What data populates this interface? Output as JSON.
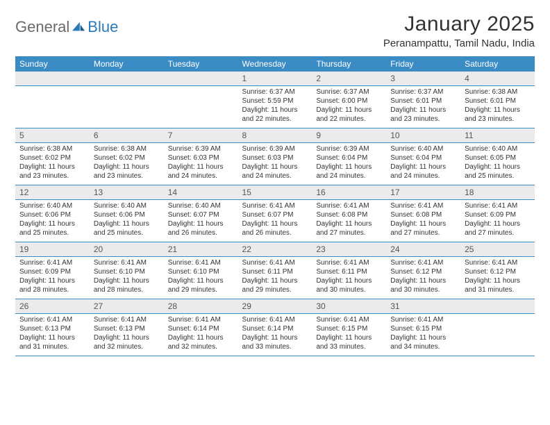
{
  "logo": {
    "text_gen": "General",
    "text_blue": "Blue"
  },
  "header": {
    "month_title": "January 2025",
    "location": "Peranampattu, Tamil Nadu, India"
  },
  "colors": {
    "header_bg": "#3b8bc4",
    "daynum_bg": "#ebebeb",
    "rule": "#3b8bc4",
    "text": "#333333"
  },
  "daynames": [
    "Sunday",
    "Monday",
    "Tuesday",
    "Wednesday",
    "Thursday",
    "Friday",
    "Saturday"
  ],
  "weeks": [
    [
      null,
      null,
      null,
      {
        "n": "1",
        "sunrise": "6:37 AM",
        "sunset": "5:59 PM",
        "daylight": "11 hours and 22 minutes."
      },
      {
        "n": "2",
        "sunrise": "6:37 AM",
        "sunset": "6:00 PM",
        "daylight": "11 hours and 22 minutes."
      },
      {
        "n": "3",
        "sunrise": "6:37 AM",
        "sunset": "6:01 PM",
        "daylight": "11 hours and 23 minutes."
      },
      {
        "n": "4",
        "sunrise": "6:38 AM",
        "sunset": "6:01 PM",
        "daylight": "11 hours and 23 minutes."
      }
    ],
    [
      {
        "n": "5",
        "sunrise": "6:38 AM",
        "sunset": "6:02 PM",
        "daylight": "11 hours and 23 minutes."
      },
      {
        "n": "6",
        "sunrise": "6:38 AM",
        "sunset": "6:02 PM",
        "daylight": "11 hours and 23 minutes."
      },
      {
        "n": "7",
        "sunrise": "6:39 AM",
        "sunset": "6:03 PM",
        "daylight": "11 hours and 24 minutes."
      },
      {
        "n": "8",
        "sunrise": "6:39 AM",
        "sunset": "6:03 PM",
        "daylight": "11 hours and 24 minutes."
      },
      {
        "n": "9",
        "sunrise": "6:39 AM",
        "sunset": "6:04 PM",
        "daylight": "11 hours and 24 minutes."
      },
      {
        "n": "10",
        "sunrise": "6:40 AM",
        "sunset": "6:04 PM",
        "daylight": "11 hours and 24 minutes."
      },
      {
        "n": "11",
        "sunrise": "6:40 AM",
        "sunset": "6:05 PM",
        "daylight": "11 hours and 25 minutes."
      }
    ],
    [
      {
        "n": "12",
        "sunrise": "6:40 AM",
        "sunset": "6:06 PM",
        "daylight": "11 hours and 25 minutes."
      },
      {
        "n": "13",
        "sunrise": "6:40 AM",
        "sunset": "6:06 PM",
        "daylight": "11 hours and 25 minutes."
      },
      {
        "n": "14",
        "sunrise": "6:40 AM",
        "sunset": "6:07 PM",
        "daylight": "11 hours and 26 minutes."
      },
      {
        "n": "15",
        "sunrise": "6:41 AM",
        "sunset": "6:07 PM",
        "daylight": "11 hours and 26 minutes."
      },
      {
        "n": "16",
        "sunrise": "6:41 AM",
        "sunset": "6:08 PM",
        "daylight": "11 hours and 27 minutes."
      },
      {
        "n": "17",
        "sunrise": "6:41 AM",
        "sunset": "6:08 PM",
        "daylight": "11 hours and 27 minutes."
      },
      {
        "n": "18",
        "sunrise": "6:41 AM",
        "sunset": "6:09 PM",
        "daylight": "11 hours and 27 minutes."
      }
    ],
    [
      {
        "n": "19",
        "sunrise": "6:41 AM",
        "sunset": "6:09 PM",
        "daylight": "11 hours and 28 minutes."
      },
      {
        "n": "20",
        "sunrise": "6:41 AM",
        "sunset": "6:10 PM",
        "daylight": "11 hours and 28 minutes."
      },
      {
        "n": "21",
        "sunrise": "6:41 AM",
        "sunset": "6:10 PM",
        "daylight": "11 hours and 29 minutes."
      },
      {
        "n": "22",
        "sunrise": "6:41 AM",
        "sunset": "6:11 PM",
        "daylight": "11 hours and 29 minutes."
      },
      {
        "n": "23",
        "sunrise": "6:41 AM",
        "sunset": "6:11 PM",
        "daylight": "11 hours and 30 minutes."
      },
      {
        "n": "24",
        "sunrise": "6:41 AM",
        "sunset": "6:12 PM",
        "daylight": "11 hours and 30 minutes."
      },
      {
        "n": "25",
        "sunrise": "6:41 AM",
        "sunset": "6:12 PM",
        "daylight": "11 hours and 31 minutes."
      }
    ],
    [
      {
        "n": "26",
        "sunrise": "6:41 AM",
        "sunset": "6:13 PM",
        "daylight": "11 hours and 31 minutes."
      },
      {
        "n": "27",
        "sunrise": "6:41 AM",
        "sunset": "6:13 PM",
        "daylight": "11 hours and 32 minutes."
      },
      {
        "n": "28",
        "sunrise": "6:41 AM",
        "sunset": "6:14 PM",
        "daylight": "11 hours and 32 minutes."
      },
      {
        "n": "29",
        "sunrise": "6:41 AM",
        "sunset": "6:14 PM",
        "daylight": "11 hours and 33 minutes."
      },
      {
        "n": "30",
        "sunrise": "6:41 AM",
        "sunset": "6:15 PM",
        "daylight": "11 hours and 33 minutes."
      },
      {
        "n": "31",
        "sunrise": "6:41 AM",
        "sunset": "6:15 PM",
        "daylight": "11 hours and 34 minutes."
      },
      null
    ]
  ],
  "labels": {
    "sunrise": "Sunrise: ",
    "sunset": "Sunset: ",
    "daylight": "Daylight: "
  }
}
